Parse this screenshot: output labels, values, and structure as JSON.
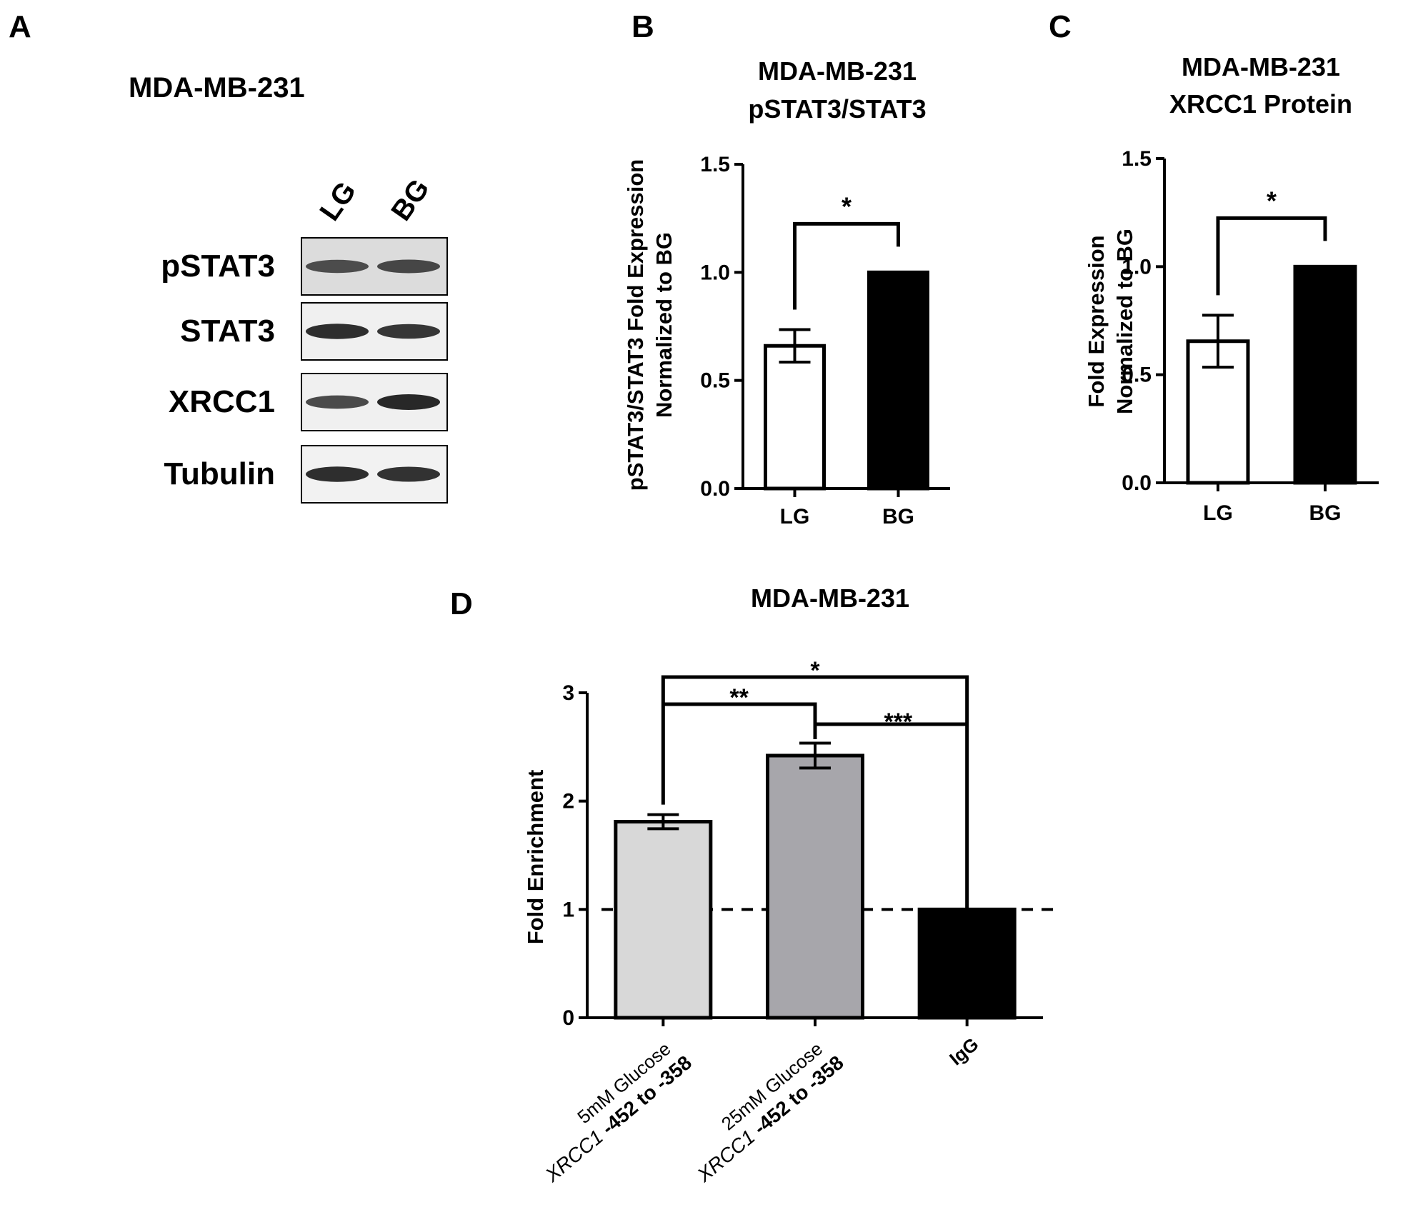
{
  "panels": {
    "A": {
      "letter": "A",
      "title": "MDA-MB-231",
      "lanes": [
        "LG",
        "BG"
      ],
      "blots": [
        {
          "label": "pSTAT3",
          "bands": [
            0.7,
            0.75
          ],
          "background": "#dcdcdc"
        },
        {
          "label": "STAT3",
          "bands": [
            0.95,
            0.88
          ],
          "background": "#f0f0f0"
        },
        {
          "label": "XRCC1",
          "bands": [
            0.72,
            1.0
          ],
          "background": "#f0f0f0"
        },
        {
          "label": "Tubulin",
          "bands": [
            0.95,
            0.92
          ],
          "background": "#f2f2f2"
        }
      ]
    },
    "B": {
      "letter": "B"
    },
    "C": {
      "letter": "C"
    },
    "D": {
      "letter": "D"
    }
  },
  "chart_data": [
    {
      "id": "B",
      "type": "bar",
      "title": "MDA-MB-231\npSTAT3/STAT3",
      "ylabel": "pSTAT3/STAT3 Fold Expression\nNormalized to BG",
      "xlabel": "",
      "categories": [
        "LG",
        "BG"
      ],
      "values": [
        0.66,
        1.0
      ],
      "errors": [
        0.075,
        0
      ],
      "bar_colors": [
        "#ffffff",
        "#000000"
      ],
      "ylim": [
        0,
        1.5
      ],
      "yticks": [
        "0.0",
        "0.5",
        "1.0",
        "1.5"
      ],
      "grid": false,
      "significance": [
        {
          "from": 0,
          "to": 1,
          "label": "*"
        }
      ]
    },
    {
      "id": "C",
      "type": "bar",
      "title": "MDA-MB-231\nXRCC1 Protein",
      "ylabel": "Fold Expression\nNormalized to BG",
      "xlabel": "",
      "categories": [
        "LG",
        "BG"
      ],
      "values": [
        0.655,
        1.0
      ],
      "errors": [
        0.12,
        0
      ],
      "bar_colors": [
        "#ffffff",
        "#000000"
      ],
      "ylim": [
        0,
        1.5
      ],
      "yticks": [
        "0.0",
        "0.5",
        "1.0",
        "1.5"
      ],
      "grid": false,
      "significance": [
        {
          "from": 0,
          "to": 1,
          "label": "*"
        }
      ]
    },
    {
      "id": "D",
      "type": "bar",
      "title": "MDA-MB-231",
      "ylabel": "Fold Enrichment",
      "xlabel": "",
      "categories": [
        {
          "line1": "5mM Glucose",
          "line2_italic": "XRCC1",
          "line2_rest": " -452 to -358"
        },
        {
          "line1": "25mM Glucose",
          "line2_italic": "XRCC1",
          "line2_rest": " -452 to -358"
        },
        {
          "line1": "IgG",
          "line2_italic": "",
          "line2_rest": ""
        }
      ],
      "values": [
        1.81,
        2.42,
        1.0
      ],
      "errors": [
        0.065,
        0.115,
        0
      ],
      "bar_colors": [
        "#d8d8d8",
        "#a7a6ab",
        "#000000"
      ],
      "ylim": [
        0,
        3
      ],
      "yticks": [
        "0",
        "1",
        "2",
        "3"
      ],
      "reference_line": 1,
      "grid": false,
      "significance": [
        {
          "from": 0,
          "to": 2,
          "label": "*"
        },
        {
          "from": 0,
          "to": 1,
          "label": "**"
        },
        {
          "from": 1,
          "to": 2,
          "label": "***"
        }
      ]
    }
  ]
}
